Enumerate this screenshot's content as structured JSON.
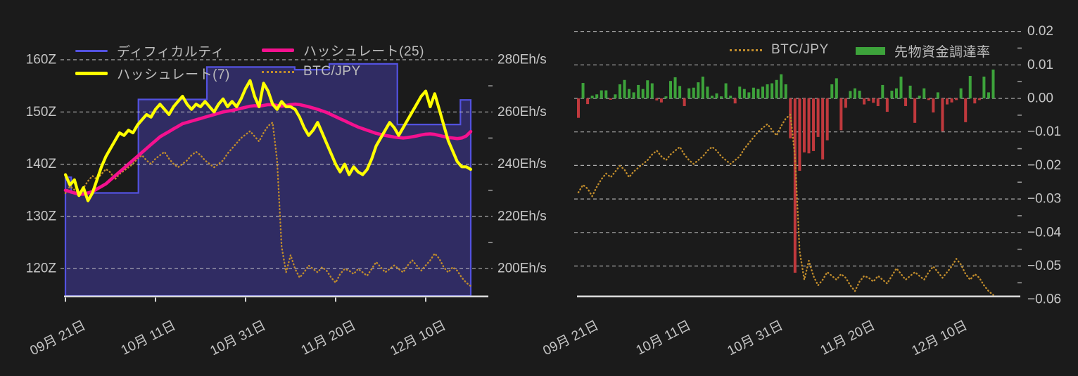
{
  "page": {
    "background": "#1b1b1b",
    "colors": {
      "difficulty_line": "#5352e0",
      "difficulty_fill": "#302c63",
      "hashrate7": "#ffff00",
      "hashrate25": "#f5118f",
      "btc_jpy": "#c08c2c",
      "funding_positive": "#3da33b",
      "funding_negative": "#c0393d",
      "grid": "#d0d0d0",
      "axis_text": "#c6c6c6",
      "legend_text": "#bdbdbd",
      "baseline": "#d8d8d8"
    }
  },
  "left_chart": {
    "legend": [
      {
        "label": "ディフィカルティ",
        "color": "#5352e0",
        "style": "line"
      },
      {
        "label": "ハッシュレート(25)",
        "color": "#f5118f",
        "style": "line"
      },
      {
        "label": "ハッシュレート(7)",
        "color": "#ffff00",
        "style": "line"
      },
      {
        "label": "BTC/JPY",
        "color": "#c08c2c",
        "style": "dotted"
      }
    ],
    "y_axis_left_labels": [
      "160Z",
      "150Z",
      "140Z",
      "130Z",
      "120Z"
    ],
    "y_axis_right_labels": [
      "280Eh/s",
      "260Eh/s",
      "240Eh/s",
      "220Eh/s",
      "200Eh/s"
    ],
    "x_axis_labels": [
      "09月 21日",
      "10月 11日",
      "10月 31日",
      "11月 20日",
      "12月 10日"
    ]
  },
  "right_chart": {
    "legend": [
      {
        "label": "BTC/JPY",
        "color": "#c08c2c",
        "style": "dotted"
      },
      {
        "label": "先物資金調達率",
        "color": "#3da33b",
        "style": "bar"
      }
    ],
    "y_axis_labels": [
      "0.02",
      "0.01",
      "0.00",
      "−0.01",
      "−0.02",
      "−0.03",
      "−0.04",
      "−0.05",
      "−0.06"
    ],
    "x_axis_labels": [
      "09月 21日",
      "10月 11日",
      "10月 31日",
      "11月 20日",
      "12月 10日"
    ]
  },
  "chart_data": [
    {
      "type": "area+line",
      "title": "ディフィカルティ / ハッシュレート / BTC/JPY",
      "n_days": 91,
      "x_start_label": "09月 21日",
      "x_tick_days": [
        0,
        20,
        40,
        60,
        80
      ],
      "x_tick_labels": [
        "09月 21日",
        "10月 11日",
        "10月 31日",
        "11月 20日",
        "12月 10日"
      ],
      "y_axis_left": {
        "unit": "Z",
        "ticks": [
          160,
          150,
          140,
          130,
          120
        ]
      },
      "y_axis_right": {
        "unit": "Eh/s",
        "ticks": [
          280,
          260,
          240,
          220,
          200
        ]
      },
      "grid": true,
      "legend_position": "top-left",
      "difficulty_steps": [
        {
          "from": 0,
          "to": 1.3,
          "value": 137.5
        },
        {
          "from": 1.3,
          "to": 16.2,
          "value": 134.5
        },
        {
          "from": 16.2,
          "to": 31.4,
          "value": 152.4
        },
        {
          "from": 31.4,
          "to": 50.9,
          "value": 158.6
        },
        {
          "from": 50.9,
          "to": 58.6,
          "value": 158.1
        },
        {
          "from": 58.6,
          "to": 73.7,
          "value": 159.2
        },
        {
          "from": 73.7,
          "to": 87.7,
          "value": 147.6
        },
        {
          "from": 87.7,
          "to": 90,
          "value": 152.3
        }
      ],
      "series": [
        {
          "name": "ハッシュレート(7)",
          "axis": "right",
          "unit": "Eh/s",
          "color": "#ffff00",
          "values": [
            236,
            232,
            234,
            228,
            231,
            226,
            229,
            234,
            239,
            243,
            246,
            249,
            252,
            251,
            253,
            252,
            255,
            257,
            259,
            258,
            261,
            263,
            261,
            259,
            262,
            264,
            266,
            263,
            261,
            263,
            262,
            264,
            262,
            260,
            263,
            265,
            262,
            264,
            262,
            265,
            269,
            272,
            266,
            262,
            271,
            268,
            263,
            261,
            264,
            262,
            262,
            261,
            258,
            254,
            251,
            253,
            256,
            252,
            248,
            244,
            240,
            237,
            240,
            236,
            239,
            237,
            236,
            238,
            242,
            247,
            250,
            253,
            256,
            254,
            251,
            254,
            257,
            260,
            263,
            266,
            268,
            262,
            267,
            261,
            255,
            249,
            245,
            241,
            239,
            239,
            238
          ]
        },
        {
          "name": "ハッシュレート(25)",
          "axis": "right",
          "unit": "Eh/s",
          "color": "#f5118f",
          "values": [
            230,
            229.5,
            229,
            228.5,
            228.5,
            229,
            229.5,
            230.5,
            231.5,
            232.5,
            234,
            235.5,
            237,
            238.5,
            240,
            241.5,
            243,
            244.5,
            246,
            247.5,
            249,
            250.5,
            251.5,
            252.5,
            253.5,
            254.5,
            255.5,
            256,
            256.5,
            257,
            257.5,
            258,
            258.5,
            259,
            259.5,
            260,
            260.3,
            260.6,
            261,
            261.4,
            261.8,
            262.2,
            262.4,
            262.2,
            262.5,
            262.8,
            262.8,
            262.5,
            262.2,
            262.5,
            262.8,
            263,
            262.8,
            262.4,
            262,
            261.5,
            261,
            260.4,
            259.8,
            259,
            258.2,
            257.4,
            256.6,
            255.8,
            255,
            254.2,
            253.6,
            253,
            252.4,
            251.8,
            251.4,
            251,
            250.7,
            250.4,
            250.2,
            250,
            250.2,
            250.5,
            250.8,
            251.2,
            251.5,
            251.6,
            251.4,
            251,
            250.6,
            250.2,
            250,
            249.8,
            250,
            250.8,
            252.5
          ]
        },
        {
          "name": "BTC/JPY",
          "axis": "hidden",
          "unit": "relative_0_1",
          "color": "#c08c2c",
          "values": [
            0.56,
            0.6,
            0.58,
            0.54,
            0.59,
            0.63,
            0.66,
            0.64,
            0.67,
            0.7,
            0.68,
            0.64,
            0.67,
            0.69,
            0.71,
            0.73,
            0.76,
            0.78,
            0.75,
            0.73,
            0.76,
            0.78,
            0.8,
            0.76,
            0.73,
            0.71,
            0.73,
            0.75,
            0.78,
            0.8,
            0.78,
            0.75,
            0.73,
            0.71,
            0.73,
            0.75,
            0.79,
            0.82,
            0.85,
            0.88,
            0.9,
            0.92,
            0.89,
            0.86,
            0.91,
            0.95,
            0.97,
            0.75,
            0.25,
            0.1,
            0.2,
            0.12,
            0.07,
            0.1,
            0.14,
            0.12,
            0.1,
            0.13,
            0.11,
            0.07,
            0.04,
            0.09,
            0.12,
            0.11,
            0.09,
            0.12,
            0.1,
            0.08,
            0.12,
            0.16,
            0.13,
            0.1,
            0.12,
            0.14,
            0.12,
            0.1,
            0.14,
            0.17,
            0.14,
            0.11,
            0.14,
            0.17,
            0.21,
            0.18,
            0.13,
            0.1,
            0.13,
            0.11,
            0.07,
            0.04,
            0.02
          ]
        }
      ]
    },
    {
      "type": "bar+line",
      "title": "BTC/JPY / 先物資金調達率",
      "n_days": 91,
      "x_tick_days": [
        0,
        20,
        40,
        60,
        80
      ],
      "x_tick_labels": [
        "09月 21日",
        "10月 11日",
        "10月 31日",
        "11月 20日",
        "12月 10日"
      ],
      "ylim": [
        -0.06,
        0.02
      ],
      "y_ticks": [
        0.02,
        0.01,
        0,
        -0.01,
        -0.02,
        -0.03,
        -0.04,
        -0.05,
        -0.06
      ],
      "grid": true,
      "legend_position": "top-right",
      "series": [
        {
          "name": "先物資金調達率",
          "type": "bar",
          "color_positive": "#3da33b",
          "color_negative": "#c0393d",
          "values": [
            -0.0058,
            0.0046,
            -0.0017,
            0.0008,
            0.0012,
            0.0024,
            0.0024,
            -0.0004,
            0.0012,
            0.0042,
            0.0055,
            0.0028,
            0.0018,
            0.004,
            0.0028,
            0.0054,
            0.0045,
            -0.0006,
            -0.0012,
            0.0006,
            0.0052,
            0.0063,
            0.0037,
            -0.0023,
            0.003,
            0.0032,
            0.0048,
            0.0065,
            0.0035,
            0.0008,
            0.0015,
            0.0006,
            0.0045,
            0.0008,
            -0.0015,
            0.0035,
            0.0028,
            0.0018,
            0.0032,
            0.0028,
            0.0035,
            0.0042,
            0.0045,
            0.0055,
            0.0072,
            0.0042,
            -0.0119,
            -0.052,
            -0.0216,
            -0.0161,
            -0.0164,
            -0.0157,
            -0.0115,
            -0.0182,
            -0.0125,
            0.0042,
            0.006,
            -0.0095,
            -0.0028,
            0.0022,
            0.003,
            0.0023,
            -0.0018,
            -0.0008,
            -0.0013,
            -0.0023,
            0.004,
            -0.004,
            0.0023,
            0.003,
            0.0065,
            -0.0023,
            0.0038,
            -0.0073,
            0.0008,
            0.003,
            -0.0005,
            -0.0042,
            0.0018,
            -0.0098,
            -0.0018,
            -0.0012,
            -0.0005,
            0.003,
            -0.0071,
            0.0067,
            -0.0015,
            -0.0005,
            0.0065,
            0.0018,
            0.0086
          ]
        },
        {
          "name": "BTC/JPY",
          "type": "dotted-line",
          "axis": "hidden",
          "unit": "relative_0_1",
          "color": "#c08c2c",
          "values": [
            0.56,
            0.6,
            0.58,
            0.54,
            0.59,
            0.63,
            0.66,
            0.64,
            0.67,
            0.7,
            0.68,
            0.64,
            0.67,
            0.69,
            0.71,
            0.73,
            0.76,
            0.78,
            0.75,
            0.73,
            0.76,
            0.78,
            0.8,
            0.76,
            0.73,
            0.71,
            0.73,
            0.75,
            0.78,
            0.8,
            0.78,
            0.75,
            0.73,
            0.71,
            0.73,
            0.75,
            0.79,
            0.82,
            0.85,
            0.88,
            0.9,
            0.92,
            0.89,
            0.86,
            0.91,
            0.95,
            0.97,
            0.75,
            0.25,
            0.1,
            0.2,
            0.12,
            0.07,
            0.1,
            0.14,
            0.12,
            0.1,
            0.13,
            0.11,
            0.07,
            0.04,
            0.09,
            0.12,
            0.11,
            0.09,
            0.12,
            0.1,
            0.08,
            0.12,
            0.16,
            0.13,
            0.1,
            0.12,
            0.14,
            0.12,
            0.1,
            0.14,
            0.17,
            0.14,
            0.11,
            0.14,
            0.17,
            0.21,
            0.18,
            0.13,
            0.1,
            0.13,
            0.11,
            0.07,
            0.04,
            0.02
          ]
        }
      ]
    }
  ]
}
